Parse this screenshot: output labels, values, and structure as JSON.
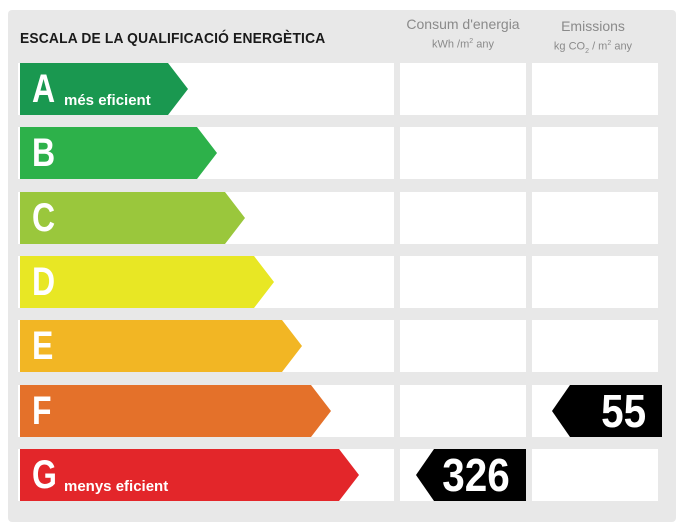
{
  "title": "ESCALA DE LA QUALIFICACIÓ ENERGÈTICA",
  "columns": {
    "consum": {
      "heading": "Consum d'energia",
      "unit_main": "kWh /m",
      "unit_sup": "2",
      "unit_tail": " any"
    },
    "emissions": {
      "heading": "Emissions",
      "unit_main": "kg CO",
      "unit_sub": "2",
      "unit_mid": " / m",
      "unit_sup": "2",
      "unit_tail": " any"
    }
  },
  "rows": [
    {
      "letter": "A",
      "subtitle": "més eficient",
      "color": "#1a9850"
    },
    {
      "letter": "B",
      "subtitle": "",
      "color": "#2db14a"
    },
    {
      "letter": "C",
      "subtitle": "",
      "color": "#9ac73c"
    },
    {
      "letter": "D",
      "subtitle": "",
      "color": "#e8e724"
    },
    {
      "letter": "E",
      "subtitle": "",
      "color": "#f2b624"
    },
    {
      "letter": "F",
      "subtitle": "",
      "color": "#e4712a"
    },
    {
      "letter": "G",
      "subtitle": "menys eficient",
      "color": "#e3262a"
    }
  ],
  "ratings": {
    "consum": {
      "letter": "G",
      "value": "326"
    },
    "emissions": {
      "letter": "F",
      "value": "55"
    }
  }
}
